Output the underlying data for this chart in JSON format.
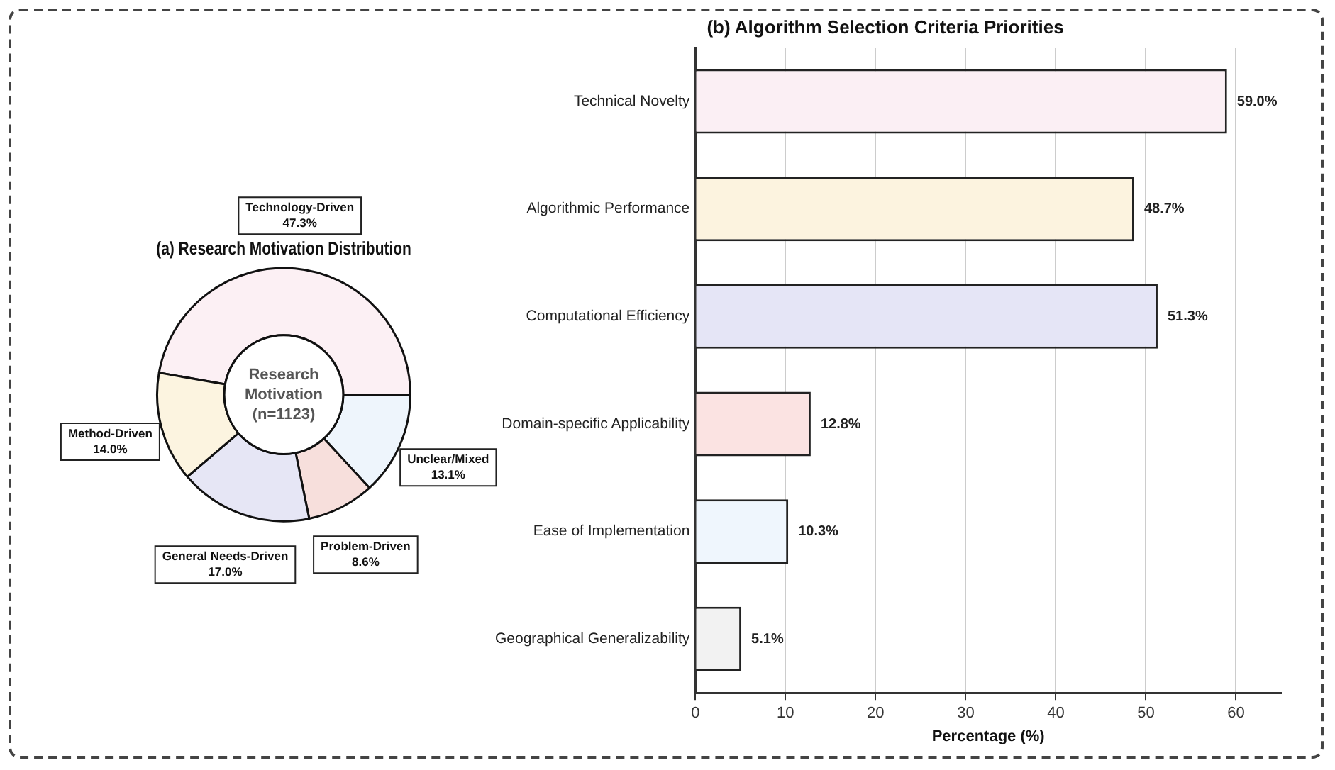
{
  "chart_data": [
    {
      "type": "donut",
      "title": "(a) Research Motivation Distribution",
      "categories": [
        "Technology-Driven",
        "Unclear/Mixed",
        "Problem-Driven",
        "General Needs-Driven",
        "Method-Driven"
      ],
      "values": [
        47.3,
        13.1,
        8.6,
        17.0,
        14.0
      ],
      "value_labels": [
        "47.3%",
        "13.1%",
        "8.6%",
        "17.0%",
        "14.0%"
      ],
      "colors": [
        "#fcf0f4",
        "#eef5fc",
        "#f7dfdc",
        "#e6e6f5",
        "#fcf4e0"
      ],
      "annotations": [
        "Research\nMotivation\n(n=1123)"
      ],
      "legend": false
    },
    {
      "type": "bar",
      "orientation": "horizontal",
      "title": "(b) Algorithm Selection Criteria Priorities",
      "xlabel": "Percentage (%)",
      "categories": [
        "Technical Novelty",
        "Algorithmic Performance",
        "Computational Efficiency",
        "Domain-specific Applicability",
        "Ease of Implementation",
        "Geographical Generalizability"
      ],
      "values": [
        59.0,
        48.7,
        51.3,
        12.8,
        10.3,
        5.1
      ],
      "value_labels": [
        "59.0%",
        "48.7%",
        "51.3%",
        "12.8%",
        "10.3%",
        "5.1%"
      ],
      "colors": [
        "#fbeff4",
        "#fcf3df",
        "#e5e5f6",
        "#fbe3e2",
        "#eff6fd",
        "#f2f2f2"
      ],
      "xlim": [
        0,
        65
      ],
      "xticks": [
        0,
        10,
        20,
        30,
        40,
        50,
        60
      ],
      "grid": "x",
      "legend": false
    }
  ]
}
